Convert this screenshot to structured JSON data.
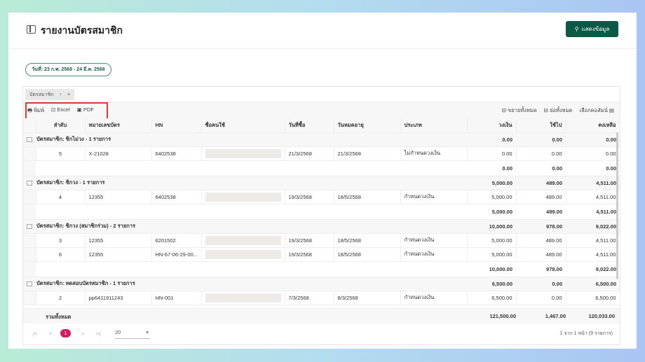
{
  "header": {
    "title": "รายงานบัตรสมาชิก",
    "show_button": "แสดงข้อมูล"
  },
  "date_filter": "วันที่: 23 ก.พ. 2568 - 24 มี.ค. 2568",
  "group_chip": {
    "label": "บัตรสมาชิก",
    "sort": "↑",
    "remove": "×"
  },
  "toolbar": {
    "print": "พิมพ์",
    "excel": "Excel",
    "pdf": "PDF",
    "expand_all": "ขยายทั้งหมด",
    "collapse_all": "ย่อทั้งหมด",
    "choose_columns": "เลือกคอลัมน์"
  },
  "columns": [
    "ลำดับ",
    "หมายเลขบัตร",
    "HN",
    "ชื่อคนใช้",
    "วันที่ซื้อ",
    "วันหมดอายุ",
    "ประเภท",
    "วงเงิน",
    "ใช้ไป",
    "คงเหลือ"
  ],
  "groups": [
    {
      "title": "บัตรสมาชิก: ชิกไม่วง - 1 รายการ",
      "limit": "0.00",
      "used": "0.00",
      "remain": "0.00",
      "rows": [
        {
          "no": "5",
          "card": "X-21028",
          "hn": "6402538",
          "buy": "21/3/2568",
          "exp": "21/3/2568",
          "type": "ไม่กำหนดวงเงิน",
          "limit": "0.00",
          "used": "0.00",
          "remain": "0.00"
        }
      ],
      "footer": {
        "limit": "0.00",
        "used": "0.00",
        "remain": "0.00"
      }
    },
    {
      "title": "บัตรสมาชิก: ชิกวง - 1 รายการ",
      "limit": "5,000.00",
      "used": "489.00",
      "remain": "4,511.00",
      "rows": [
        {
          "no": "4",
          "card": "12355",
          "hn": "6402538",
          "buy": "19/3/2568",
          "exp": "18/5/2568",
          "type": "กำหนดวงเงิน",
          "limit": "5,000.00",
          "used": "489.00",
          "remain": "4,511.00"
        }
      ],
      "footer": {
        "limit": "5,000.00",
        "used": "489.00",
        "remain": "4,511.00"
      }
    },
    {
      "title": "บัตรสมาชิก: ชิกวง (สมาชิกร่วม) - 2 รายการ",
      "limit": "10,000.00",
      "used": "978.00",
      "remain": "9,022.00",
      "rows": [
        {
          "no": "3",
          "card": "12355",
          "hn": "6201502",
          "buy": "19/3/2568",
          "exp": "18/5/2568",
          "type": "กำหนดวงเงิน",
          "limit": "5,000.00",
          "used": "489.00",
          "remain": "4,511.00"
        },
        {
          "no": "6",
          "card": "12355",
          "hn": "HN-67-06-29-00...",
          "buy": "19/3/2568",
          "exp": "18/5/2568",
          "type": "กำหนดวงเงิน",
          "limit": "5,000.00",
          "used": "489.00",
          "remain": "4,511.00"
        }
      ],
      "footer": {
        "limit": "10,000.00",
        "used": "978.00",
        "remain": "9,022.00"
      }
    },
    {
      "title": "บัตรสมาชิก: ทดสอบบัตรสมาชิก - 1 รายการ",
      "limit": "6,500.00",
      "used": "0.00",
      "remain": "6,500.00",
      "rows": [
        {
          "no": "2",
          "card": "pp6411911243",
          "hn": "HN-001",
          "buy": "7/3/2568",
          "exp": "8/3/2568",
          "type": "กำหนดวงเงิน",
          "limit": "6,500.00",
          "used": "0.00",
          "remain": "6,500.00"
        }
      ]
    }
  ],
  "total": {
    "label": "รวมทั้งหมด",
    "limit": "121,500.00",
    "used": "1,467.00",
    "remain": "120,033.00"
  },
  "pager": {
    "current": "1",
    "page_size": "20",
    "info": "1 จาก 1 หน้า (9 รายการ)"
  },
  "colors": {
    "primary": "#0b5a46",
    "page_active": "#d81b60",
    "highlight": "#e53935"
  }
}
